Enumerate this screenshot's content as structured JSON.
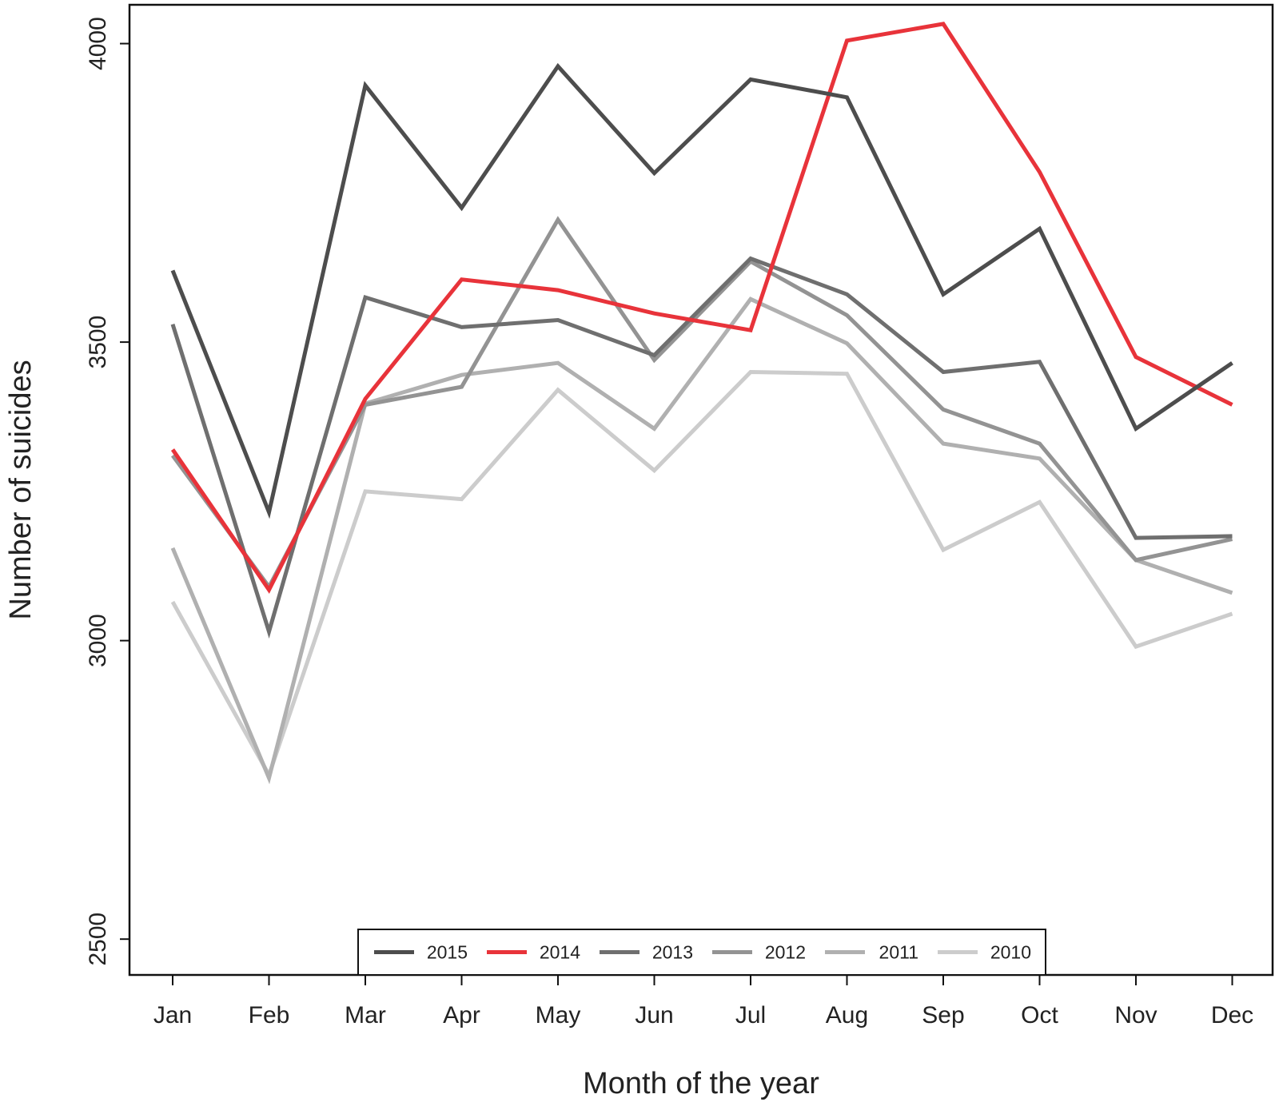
{
  "chart_data": {
    "type": "line",
    "title": "",
    "xlabel": "Month of the year",
    "ylabel": "Number of suicides",
    "categories": [
      "Jan",
      "Feb",
      "Mar",
      "Apr",
      "May",
      "Jun",
      "Jul",
      "Aug",
      "Sep",
      "Oct",
      "Nov",
      "Dec"
    ],
    "ylim": [
      2440,
      4065
    ],
    "yticks": [
      "2500",
      "3000",
      "3500",
      "4000"
    ],
    "grid": false,
    "legend_position": "bottom-center",
    "series": [
      {
        "name": "2010",
        "color": "#cccccc",
        "values": [
          3065,
          2775,
          3250,
          3237,
          3420,
          3285,
          3450,
          3447,
          3152,
          3232,
          2990,
          3045
        ]
      },
      {
        "name": "2011",
        "color": "#b0b0b0",
        "values": [
          3155,
          2770,
          3397,
          3445,
          3465,
          3355,
          3572,
          3498,
          3330,
          3305,
          3135,
          3080
        ]
      },
      {
        "name": "2012",
        "color": "#939393",
        "values": [
          3310,
          3090,
          3395,
          3425,
          3705,
          3470,
          3635,
          3545,
          3387,
          3330,
          3135,
          3170
        ]
      },
      {
        "name": "2013",
        "color": "#6f6f6f",
        "values": [
          3530,
          3015,
          3575,
          3525,
          3537,
          3478,
          3640,
          3580,
          3450,
          3467,
          3172,
          3175
        ]
      },
      {
        "name": "2014",
        "color": "#e8333a",
        "values": [
          3320,
          3085,
          3405,
          3605,
          3587,
          3548,
          3520,
          4005,
          4033,
          3785,
          3475,
          3395
        ]
      },
      {
        "name": "2015",
        "color": "#4d4d4d",
        "values": [
          3620,
          3215,
          3930,
          3725,
          3962,
          3783,
          3940,
          3910,
          3580,
          3690,
          3355,
          3465
        ]
      }
    ],
    "legend_order": [
      "2015",
      "2014",
      "2013",
      "2012",
      "2011",
      "2010"
    ]
  }
}
